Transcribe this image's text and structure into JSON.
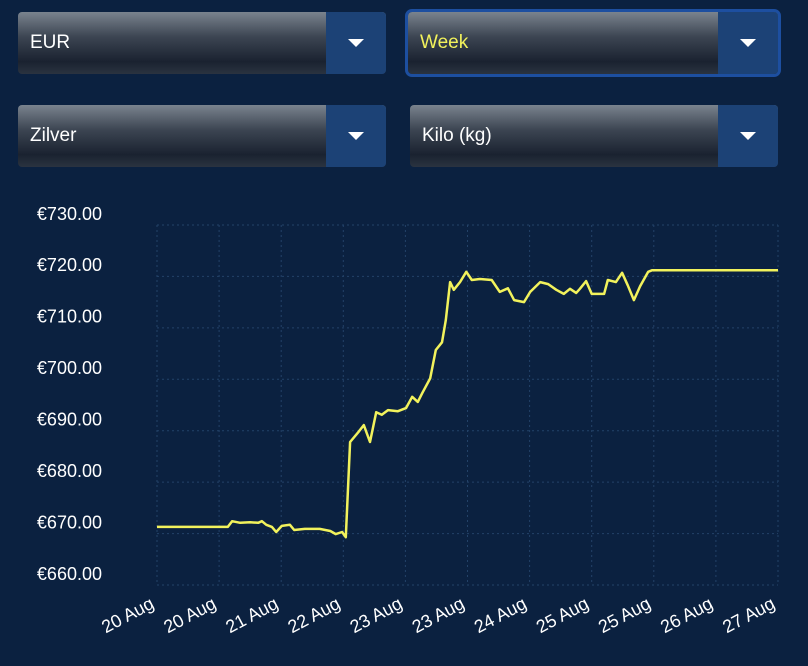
{
  "controls": {
    "currency": "EUR",
    "period": "Week",
    "metal": "Zilver",
    "unit": "Kilo (kg)"
  },
  "chart_data": {
    "type": "line",
    "x": [
      0,
      1.14,
      1.21,
      1.34,
      1.5,
      1.63,
      1.69,
      1.76,
      1.85,
      1.92,
      2.01,
      2.14,
      2.21,
      2.38,
      2.62,
      2.79,
      2.88,
      2.98,
      3.04,
      3.11,
      3.24,
      3.33,
      3.43,
      3.53,
      3.62,
      3.72,
      3.88,
      4.01,
      4.11,
      4.2,
      4.27,
      4.4,
      4.49,
      4.59,
      4.65,
      4.72,
      4.78,
      4.88,
      4.98,
      5.07,
      5.2,
      5.39,
      5.52,
      5.65,
      5.75,
      5.91,
      6.01,
      6.17,
      6.3,
      6.43,
      6.55,
      6.65,
      6.75,
      6.81,
      6.91,
      7.0,
      7.2,
      7.26,
      7.39,
      7.49,
      7.58,
      7.68,
      7.78,
      7.91,
      7.97,
      10
    ],
    "series": [
      {
        "color": "#f2f25c",
        "values": [
          671.3,
          671.3,
          672.4,
          672.1,
          672.2,
          672.1,
          672.4,
          671.7,
          671.3,
          670.3,
          671.5,
          671.7,
          670.7,
          670.9,
          670.9,
          670.5,
          669.9,
          670.3,
          669.3,
          687.8,
          689.7,
          691.1,
          687.8,
          693.6,
          693.1,
          694.0,
          693.8,
          694.4,
          696.6,
          695.6,
          697.3,
          700.2,
          705.7,
          707.2,
          711.5,
          718.9,
          717.4,
          718.9,
          720.9,
          719.3,
          719.5,
          719.3,
          717.0,
          717.7,
          715.4,
          715.0,
          717.0,
          718.9,
          718.5,
          717.4,
          716.6,
          717.6,
          716.8,
          717.6,
          719.1,
          716.6,
          716.6,
          719.3,
          718.9,
          720.7,
          718.3,
          715.4,
          718.1,
          720.9,
          721.2,
          721.2
        ]
      }
    ],
    "xlim": [
      0,
      10
    ],
    "xticks": [
      {
        "value": 0,
        "label": "20 Aug"
      },
      {
        "value": 1,
        "label": "20 Aug"
      },
      {
        "value": 2,
        "label": "21 Aug"
      },
      {
        "value": 3,
        "label": "22 Aug"
      },
      {
        "value": 4,
        "label": "23 Aug"
      },
      {
        "value": 5,
        "label": "23 Aug"
      },
      {
        "value": 6,
        "label": "24 Aug"
      },
      {
        "value": 7,
        "label": "25 Aug"
      },
      {
        "value": 8,
        "label": "25 Aug"
      },
      {
        "value": 9,
        "label": "26 Aug"
      },
      {
        "value": 10,
        "label": "27 Aug"
      }
    ],
    "ylim": [
      660,
      730
    ],
    "yticks": [
      {
        "value": 660,
        "label": "€660.00"
      },
      {
        "value": 670,
        "label": "€670.00"
      },
      {
        "value": 680,
        "label": "€680.00"
      },
      {
        "value": 690,
        "label": "€690.00"
      },
      {
        "value": 700,
        "label": "€700.00"
      },
      {
        "value": 710,
        "label": "€710.00"
      },
      {
        "value": 720,
        "label": "€720.00"
      },
      {
        "value": 730,
        "label": "€730.00"
      }
    ],
    "grid": true
  }
}
